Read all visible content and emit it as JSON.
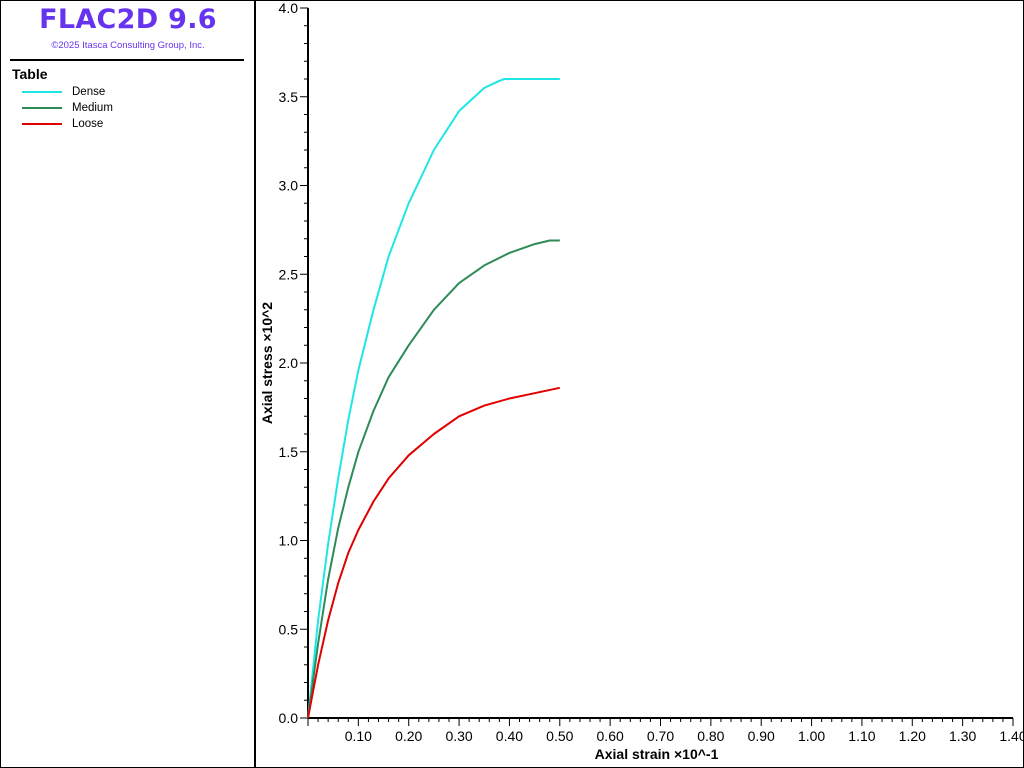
{
  "app": {
    "title": "FLAC2D 9.6",
    "copyright": "©2025 Itasca Consulting Group, Inc."
  },
  "legend": {
    "title": "Table",
    "position": "top-left panel",
    "items": [
      {
        "label": "Dense",
        "color": "#1fe6e6"
      },
      {
        "label": "Medium",
        "color": "#2e8b57"
      },
      {
        "label": "Loose",
        "color": "#e00000"
      }
    ]
  },
  "chart_data": {
    "type": "line",
    "xlabel": "Axial strain ×10^-1",
    "ylabel": "Axial stress ×10^2",
    "xlim": [
      0,
      1.4
    ],
    "ylim": [
      0,
      4.0
    ],
    "grid": false,
    "x_ticks": [
      "0.10",
      "0.20",
      "0.30",
      "0.40",
      "0.50",
      "0.60",
      "0.70",
      "0.80",
      "0.90",
      "1.00",
      "1.10",
      "1.20",
      "1.30",
      "1.40"
    ],
    "y_ticks": [
      "0.0",
      "0.5",
      "1.0",
      "1.5",
      "2.0",
      "2.5",
      "3.0",
      "3.5",
      "4.0"
    ],
    "series": [
      {
        "name": "Dense",
        "color": "#1fe6e6",
        "x": [
          0,
          0.02,
          0.04,
          0.06,
          0.08,
          0.1,
          0.13,
          0.16,
          0.2,
          0.25,
          0.3,
          0.35,
          0.38,
          0.39,
          0.42,
          0.46,
          0.5
        ],
        "y": [
          0,
          0.55,
          0.98,
          1.35,
          1.68,
          1.96,
          2.3,
          2.6,
          2.9,
          3.2,
          3.42,
          3.55,
          3.59,
          3.6,
          3.6,
          3.6,
          3.6
        ]
      },
      {
        "name": "Medium",
        "color": "#2e8b57",
        "x": [
          0,
          0.02,
          0.04,
          0.06,
          0.08,
          0.1,
          0.13,
          0.16,
          0.2,
          0.25,
          0.3,
          0.35,
          0.4,
          0.45,
          0.48,
          0.5
        ],
        "y": [
          0,
          0.42,
          0.78,
          1.07,
          1.3,
          1.5,
          1.73,
          1.92,
          2.1,
          2.3,
          2.45,
          2.55,
          2.62,
          2.67,
          2.69,
          2.69
        ]
      },
      {
        "name": "Loose",
        "color": "#e00000",
        "x": [
          0,
          0.02,
          0.04,
          0.06,
          0.08,
          0.1,
          0.13,
          0.16,
          0.2,
          0.25,
          0.3,
          0.35,
          0.4,
          0.45,
          0.5
        ],
        "y": [
          0,
          0.3,
          0.55,
          0.76,
          0.93,
          1.06,
          1.22,
          1.35,
          1.48,
          1.6,
          1.7,
          1.76,
          1.8,
          1.83,
          1.86
        ]
      }
    ]
  }
}
